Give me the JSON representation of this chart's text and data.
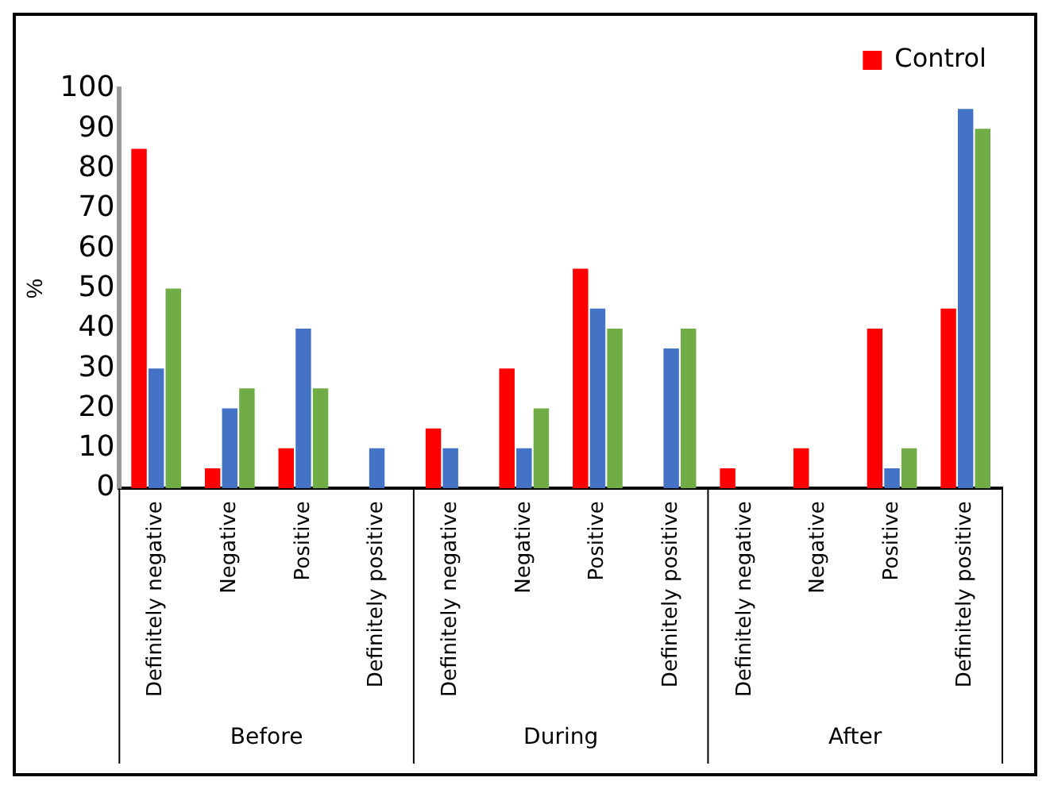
{
  "chart_data": {
    "type": "bar",
    "ylabel": "%",
    "categories": [
      "Definitely negative",
      "Negative",
      "Positive",
      "Definitely positive",
      "Definitely negative",
      "Negative",
      "Positive",
      "Definitely positive",
      "Definitely negative",
      "Negative",
      "Positive",
      "Definitely positive"
    ],
    "series": [
      {
        "name": "Control",
        "color": "#ff0000",
        "values": [
          85,
          5,
          10,
          0,
          15,
          30,
          55,
          0,
          5,
          10,
          40,
          45
        ]
      },
      {
        "color": "#4472c4",
        "values": [
          30,
          20,
          40,
          10,
          10,
          10,
          45,
          35,
          0,
          0,
          5,
          95
        ]
      },
      {
        "color": "#70ad47",
        "values": [
          50,
          25,
          25,
          0,
          0,
          20,
          40,
          40,
          0,
          0,
          10,
          90
        ]
      }
    ],
    "annotations": [
      "Before",
      "During",
      "After"
    ],
    "ylim": [
      0,
      100
    ],
    "yticks": [
      0,
      10,
      20,
      30,
      40,
      50,
      60,
      70,
      80,
      90,
      100
    ],
    "grid": false,
    "legend": "top right"
  }
}
